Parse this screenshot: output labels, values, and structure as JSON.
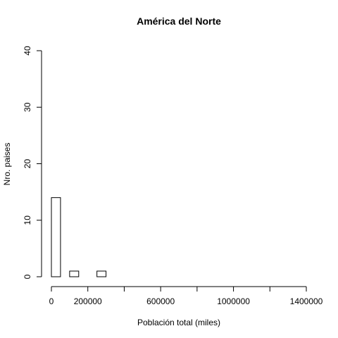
{
  "chart_data": {
    "type": "histogram",
    "title": "América del Norte",
    "xlabel": "Población total (miles)",
    "ylabel": "Nro. paises",
    "xlim": [
      0,
      1400000
    ],
    "ylim": [
      0,
      40
    ],
    "bin_width": 50000,
    "bins": [
      {
        "start": 0,
        "end": 50000,
        "count": 14
      },
      {
        "start": 100000,
        "end": 150000,
        "count": 1
      },
      {
        "start": 250000,
        "end": 300000,
        "count": 1
      }
    ],
    "x_ticks": [
      0,
      200000,
      400000,
      600000,
      800000,
      1000000,
      1200000,
      1400000
    ],
    "x_tick_labels": [
      "0",
      "200000",
      "",
      "600000",
      "",
      "1000000",
      "",
      "1400000"
    ],
    "y_ticks": [
      0,
      10,
      20,
      30,
      40
    ],
    "y_tick_labels": [
      "0",
      "10",
      "20",
      "30",
      "40"
    ]
  }
}
